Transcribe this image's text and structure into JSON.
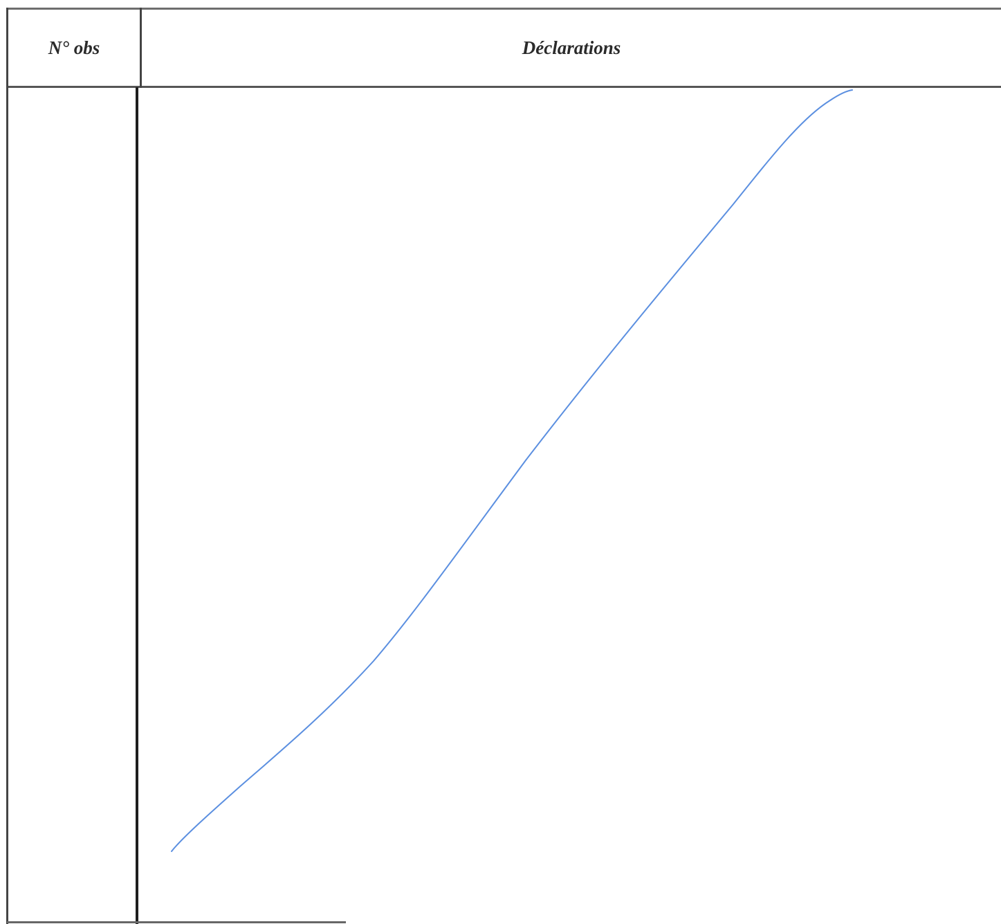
{
  "table": {
    "header": {
      "number_col": "N° obs",
      "declarations_col": "Déclarations"
    },
    "rows": [
      {
        "number": "",
        "declaration": ""
      }
    ]
  },
  "colors": {
    "ink_line": "#5b8fe0",
    "table_lines": "#3a3a3a",
    "header_text": "#2b2b2b"
  }
}
